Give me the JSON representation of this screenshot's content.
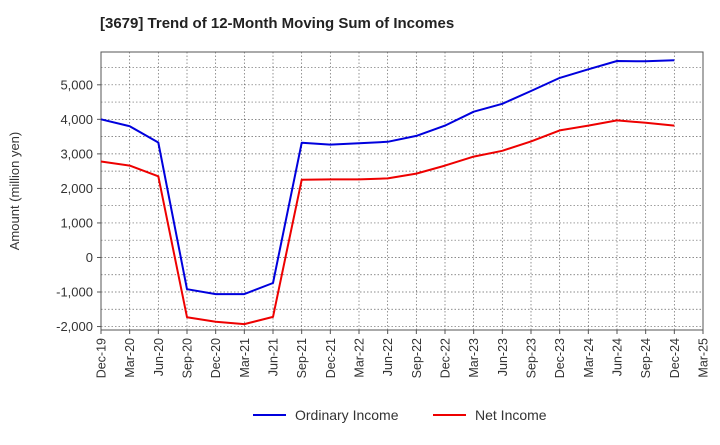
{
  "chart_data": {
    "type": "line",
    "title": "[3679]  Trend of 12-Month Moving Sum of Incomes",
    "ylabel": "Amount (million yen)",
    "xlabel": "",
    "ylim": [
      -2100,
      5950
    ],
    "yticks": [
      -2000,
      -1000,
      0,
      1000,
      2000,
      3000,
      4000,
      5000
    ],
    "ytick_labels": [
      "-2,000",
      "-1,000",
      "0",
      "1,000",
      "2,000",
      "3,000",
      "4,000",
      "5,000"
    ],
    "categories": [
      "Dec-19",
      "Mar-20",
      "Jun-20",
      "Sep-20",
      "Dec-20",
      "Mar-21",
      "Jun-21",
      "Sep-21",
      "Dec-21",
      "Mar-22",
      "Jun-22",
      "Sep-22",
      "Dec-22",
      "Mar-23",
      "Jun-23",
      "Sep-23",
      "Dec-23",
      "Mar-24",
      "Jun-24",
      "Sep-24",
      "Dec-24",
      "Mar-25"
    ],
    "grid": true,
    "legend_position": "bottom",
    "series": [
      {
        "name": "Ordinary Income",
        "color": "#0000dd",
        "values": [
          4000,
          3800,
          3330,
          -920,
          -1060,
          -1060,
          -740,
          3320,
          3270,
          3310,
          3350,
          3520,
          3820,
          4220,
          4450,
          4820,
          5200,
          5450,
          5690,
          5680,
          5710,
          null
        ]
      },
      {
        "name": "Net Income",
        "color": "#ee0000",
        "values": [
          2780,
          2660,
          2350,
          -1730,
          -1860,
          -1930,
          -1720,
          2250,
          2260,
          2260,
          2290,
          2430,
          2660,
          2920,
          3090,
          3360,
          3680,
          3820,
          3970,
          3900,
          3820,
          null
        ]
      }
    ]
  }
}
